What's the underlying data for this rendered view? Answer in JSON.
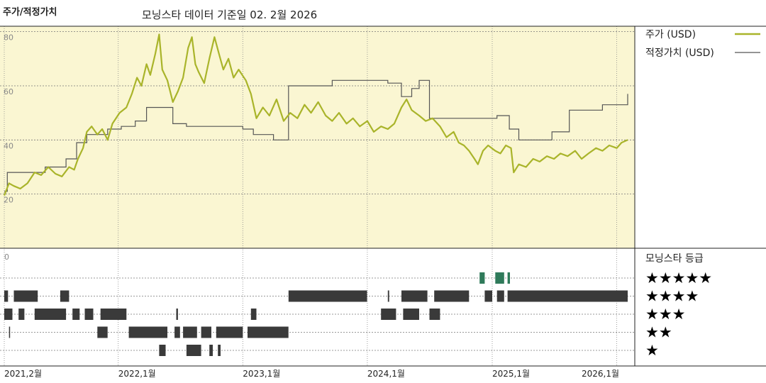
{
  "header": {
    "left_title": "주가/적정가치",
    "subtitle": "모닝스타 데이터 기준일 02. 2월 2026"
  },
  "colors": {
    "price_line": "#a9b42a",
    "fair_value_line": "#555555",
    "plot_bg": "#faf6d2",
    "rating_bar": "#3a3a3a",
    "five_star_bar": "#2f7a5a"
  },
  "chart_data": {
    "type": "line",
    "x_axis": {
      "type": "date",
      "range": [
        "2021-02-01",
        "2026-02-02"
      ],
      "tick_labels": [
        {
          "date": "2021-02-01",
          "label": "2021,2월"
        },
        {
          "date": "2022-01-01",
          "label": "2022,1월"
        },
        {
          "date": "2023-01-01",
          "label": "2023,1월"
        },
        {
          "date": "2024-01-01",
          "label": "2024,1월"
        },
        {
          "date": "2025-01-01",
          "label": "2025,1월"
        },
        {
          "date": "2026-01-01",
          "label": "2026,1월"
        }
      ]
    },
    "y_axis": {
      "range": [
        0,
        82
      ],
      "ticks": [
        {
          "value": 80,
          "label": "80"
        },
        {
          "value": 60,
          "label": "60"
        },
        {
          "value": 40,
          "label": "40"
        },
        {
          "value": 20,
          "label": "20"
        }
      ],
      "grid": true
    },
    "series": [
      {
        "name": "주가 (USD)",
        "kind": "price",
        "points": [
          [
            "2021-02-01",
            19.5
          ],
          [
            "2021-02-15",
            24
          ],
          [
            "2021-03-01",
            23
          ],
          [
            "2021-03-20",
            22
          ],
          [
            "2021-04-10",
            24
          ],
          [
            "2021-05-01",
            28
          ],
          [
            "2021-05-20",
            27
          ],
          [
            "2021-06-10",
            30
          ],
          [
            "2021-07-01",
            27.5
          ],
          [
            "2021-07-20",
            26.5
          ],
          [
            "2021-08-10",
            30
          ],
          [
            "2021-08-25",
            29
          ],
          [
            "2021-09-05",
            33
          ],
          [
            "2021-09-20",
            37
          ],
          [
            "2021-10-01",
            43
          ],
          [
            "2021-10-15",
            45
          ],
          [
            "2021-11-01",
            42
          ],
          [
            "2021-11-15",
            44
          ],
          [
            "2021-12-01",
            40
          ],
          [
            "2021-12-15",
            46
          ],
          [
            "2022-01-05",
            50
          ],
          [
            "2022-01-25",
            52
          ],
          [
            "2022-02-10",
            57
          ],
          [
            "2022-02-25",
            63
          ],
          [
            "2022-03-10",
            60
          ],
          [
            "2022-03-25",
            68
          ],
          [
            "2022-04-05",
            64
          ],
          [
            "2022-04-20",
            72
          ],
          [
            "2022-05-01",
            79
          ],
          [
            "2022-05-10",
            66
          ],
          [
            "2022-05-25",
            62
          ],
          [
            "2022-06-10",
            54
          ],
          [
            "2022-06-25",
            58
          ],
          [
            "2022-07-10",
            63
          ],
          [
            "2022-07-25",
            74
          ],
          [
            "2022-08-05",
            78
          ],
          [
            "2022-08-15",
            68
          ],
          [
            "2022-08-25",
            65
          ],
          [
            "2022-09-10",
            61
          ],
          [
            "2022-09-25",
            70
          ],
          [
            "2022-10-10",
            78
          ],
          [
            "2022-10-25",
            71
          ],
          [
            "2022-11-05",
            66
          ],
          [
            "2022-11-20",
            70
          ],
          [
            "2022-12-05",
            63
          ],
          [
            "2022-12-20",
            66
          ],
          [
            "2023-01-10",
            62
          ],
          [
            "2023-01-25",
            57
          ],
          [
            "2023-02-10",
            48
          ],
          [
            "2023-03-01",
            52
          ],
          [
            "2023-03-20",
            49
          ],
          [
            "2023-04-10",
            55
          ],
          [
            "2023-05-01",
            47
          ],
          [
            "2023-05-20",
            50
          ],
          [
            "2023-06-10",
            48
          ],
          [
            "2023-07-01",
            53
          ],
          [
            "2023-07-20",
            50
          ],
          [
            "2023-08-10",
            54
          ],
          [
            "2023-09-01",
            49
          ],
          [
            "2023-09-20",
            47
          ],
          [
            "2023-10-10",
            50
          ],
          [
            "2023-11-01",
            46
          ],
          [
            "2023-11-20",
            48
          ],
          [
            "2023-12-10",
            45
          ],
          [
            "2024-01-01",
            47
          ],
          [
            "2024-01-20",
            43
          ],
          [
            "2024-02-10",
            45
          ],
          [
            "2024-03-01",
            44
          ],
          [
            "2024-03-20",
            46
          ],
          [
            "2024-04-10",
            52
          ],
          [
            "2024-04-25",
            55
          ],
          [
            "2024-05-10",
            51
          ],
          [
            "2024-06-01",
            49
          ],
          [
            "2024-06-20",
            47
          ],
          [
            "2024-07-10",
            48
          ],
          [
            "2024-08-01",
            45
          ],
          [
            "2024-08-20",
            41
          ],
          [
            "2024-09-10",
            43
          ],
          [
            "2024-09-25",
            39
          ],
          [
            "2024-10-10",
            38
          ],
          [
            "2024-10-25",
            36
          ],
          [
            "2024-11-10",
            33
          ],
          [
            "2024-11-20",
            31
          ],
          [
            "2024-12-05",
            36
          ],
          [
            "2024-12-20",
            38
          ],
          [
            "2025-01-10",
            36
          ],
          [
            "2025-01-25",
            35
          ],
          [
            "2025-02-10",
            38
          ],
          [
            "2025-02-25",
            37
          ],
          [
            "2025-03-05",
            28
          ],
          [
            "2025-03-20",
            31
          ],
          [
            "2025-04-10",
            30
          ],
          [
            "2025-05-01",
            33
          ],
          [
            "2025-05-20",
            32
          ],
          [
            "2025-06-10",
            34
          ],
          [
            "2025-07-01",
            33
          ],
          [
            "2025-07-20",
            35
          ],
          [
            "2025-08-10",
            34
          ],
          [
            "2025-09-01",
            36
          ],
          [
            "2025-09-20",
            33
          ],
          [
            "2025-10-10",
            35
          ],
          [
            "2025-11-01",
            37
          ],
          [
            "2025-11-20",
            36
          ],
          [
            "2025-12-10",
            38
          ],
          [
            "2026-01-01",
            37
          ],
          [
            "2026-01-15",
            39
          ],
          [
            "2026-02-02",
            40
          ]
        ]
      },
      {
        "name": "적정가치 (USD)",
        "kind": "fair_value",
        "step": true,
        "points": [
          [
            "2021-02-01",
            21
          ],
          [
            "2021-02-10",
            28
          ],
          [
            "2021-06-01",
            30
          ],
          [
            "2021-08-01",
            33
          ],
          [
            "2021-09-01",
            39
          ],
          [
            "2021-10-01",
            42
          ],
          [
            "2021-12-01",
            44
          ],
          [
            "2022-01-10",
            45
          ],
          [
            "2022-02-20",
            47
          ],
          [
            "2022-03-25",
            52
          ],
          [
            "2022-06-10",
            46
          ],
          [
            "2022-07-20",
            45
          ],
          [
            "2023-01-01",
            44
          ],
          [
            "2023-02-01",
            42
          ],
          [
            "2023-04-01",
            40
          ],
          [
            "2023-05-15",
            60
          ],
          [
            "2023-09-20",
            62
          ],
          [
            "2024-01-01",
            62
          ],
          [
            "2024-03-01",
            61
          ],
          [
            "2024-04-10",
            56
          ],
          [
            "2024-05-10",
            59
          ],
          [
            "2024-06-01",
            62
          ],
          [
            "2024-07-01",
            48
          ],
          [
            "2025-01-15",
            49
          ],
          [
            "2025-02-20",
            44
          ],
          [
            "2025-03-20",
            40
          ],
          [
            "2025-06-01",
            40
          ],
          [
            "2025-06-25",
            43
          ],
          [
            "2025-08-15",
            51
          ],
          [
            "2025-11-20",
            53
          ],
          [
            "2026-01-20",
            53
          ],
          [
            "2026-02-02",
            57
          ]
        ]
      }
    ],
    "legend": {
      "placement": "right",
      "entries": [
        {
          "label": "주가 (USD)",
          "color": "#a9b42a"
        },
        {
          "label": "적정가치 (USD)",
          "color": "#555555"
        }
      ]
    },
    "rating_panel": {
      "title": "모닝스타 등급",
      "axis_label": "0",
      "levels": [
        {
          "stars": 5,
          "label": "★★★★★",
          "periods": [
            [
              "2024-11-25",
              "2024-12-10"
            ],
            [
              "2025-01-10",
              "2025-02-05"
            ],
            [
              "2025-02-15",
              "2025-02-22"
            ]
          ]
        },
        {
          "stars": 4,
          "label": "★★★★",
          "periods": [
            [
              "2021-02-01",
              "2021-02-12"
            ],
            [
              "2021-03-01",
              "2021-05-10"
            ],
            [
              "2021-07-15",
              "2021-08-10"
            ],
            [
              "2023-05-15",
              "2023-12-31"
            ],
            [
              "2024-03-01",
              "2024-03-05"
            ],
            [
              "2024-04-10",
              "2024-06-25"
            ],
            [
              "2024-07-15",
              "2024-10-25"
            ],
            [
              "2024-12-10",
              "2025-01-01"
            ],
            [
              "2025-01-15",
              "2025-02-05"
            ],
            [
              "2025-02-15",
              "2026-02-02"
            ]
          ]
        },
        {
          "stars": 3,
          "label": "★★★",
          "periods": [
            [
              "2021-02-01",
              "2021-02-25"
            ],
            [
              "2021-03-15",
              "2021-04-01"
            ],
            [
              "2021-05-01",
              "2021-08-01"
            ],
            [
              "2021-08-20",
              "2021-09-10"
            ],
            [
              "2021-09-25",
              "2021-10-20"
            ],
            [
              "2021-11-10",
              "2022-01-25"
            ],
            [
              "2022-06-20",
              "2022-06-25"
            ],
            [
              "2023-01-25",
              "2023-02-10"
            ],
            [
              "2024-02-10",
              "2024-03-25"
            ],
            [
              "2024-04-15",
              "2024-06-01"
            ],
            [
              "2024-07-01",
              "2024-08-01"
            ]
          ]
        },
        {
          "stars": 2,
          "label": "★★",
          "periods": [
            [
              "2021-02-15",
              "2021-02-18"
            ],
            [
              "2021-11-01",
              "2021-12-01"
            ],
            [
              "2022-02-01",
              "2022-05-25"
            ],
            [
              "2022-06-15",
              "2022-07-01"
            ],
            [
              "2022-07-10",
              "2022-08-20"
            ],
            [
              "2022-09-01",
              "2022-10-01"
            ],
            [
              "2022-10-15",
              "2023-01-01"
            ],
            [
              "2023-01-15",
              "2023-05-15"
            ]
          ]
        },
        {
          "stars": 1,
          "label": "★",
          "periods": [
            [
              "2022-05-01",
              "2022-05-20"
            ],
            [
              "2022-07-20",
              "2022-09-01"
            ],
            [
              "2022-09-25",
              "2022-10-05"
            ],
            [
              "2022-10-20",
              "2022-10-28"
            ]
          ]
        }
      ]
    }
  }
}
